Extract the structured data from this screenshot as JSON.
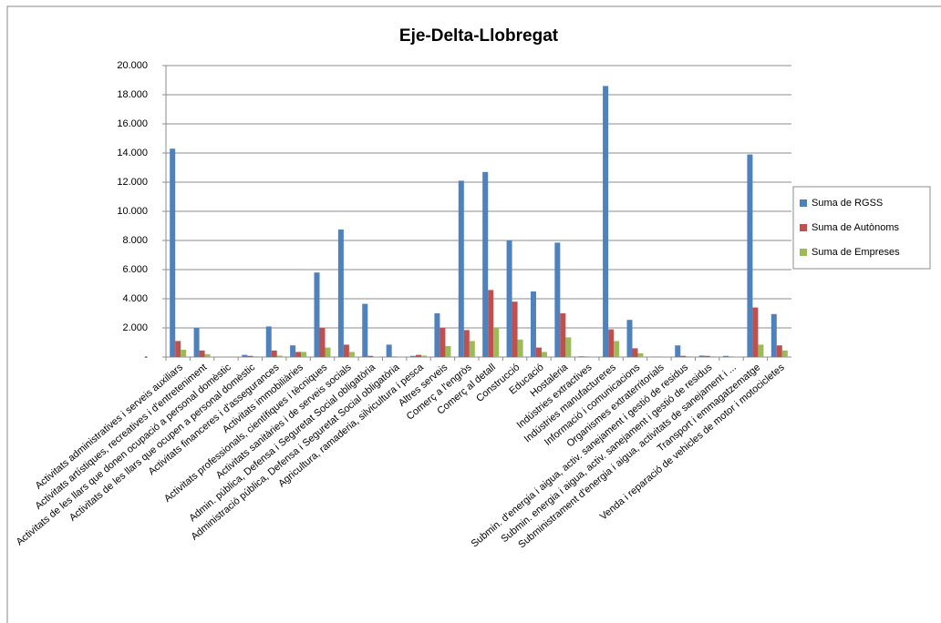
{
  "chart_data": {
    "type": "bar",
    "title": "Eje-Delta-Llobregat",
    "categories": [
      "Activitats administratives i serveis auxiliars",
      "Activitats artístiques, recreatives i d'entreteniment",
      "Activitats de les llars que donen ocupació a personal domèstic",
      "Activitats de les llars que ocupen a personal domèstic",
      "Activitats financeres i d'assegurances",
      "Activitats immobiliàries",
      "Activitats professionals, científiques i tècniques",
      "Activitats sanitàries i de serveis socials",
      "Admin. pública, Defensa i Seguretat Social obligatòria",
      "Administració pública, Defensa i Seguretat Social obligatòria",
      "Agricultura, ramaderia, silvicultura i pesca",
      "Altres serveis",
      "Comerç a l'engròs",
      "Comerç al detall",
      "Construcció",
      "Educació",
      "Hostaleria",
      "Indústries extractives",
      "Indústries manufactureres",
      "Informació i comunicacions",
      "Organismes extraterritorials",
      "Submin. d'energia i aigua, activ. sanejament i gestió de residus",
      "Submin. energia i aigua, activ. sanejament i gestió de residus",
      "Subministrament d'energia i aigua, activitats de sanejament i ...",
      "Transport i emmagatzematge",
      "Venda i reparació de vehicles de motor i motocicletes"
    ],
    "series": [
      {
        "name": "Suma de RGSS",
        "color": "#4f81bd",
        "values": [
          14300,
          2000,
          0,
          150,
          2100,
          800,
          5800,
          8750,
          3650,
          850,
          80,
          3000,
          12100,
          12700,
          8000,
          4500,
          7850,
          50,
          18600,
          2550,
          30,
          800,
          100,
          80,
          13900,
          2950
        ]
      },
      {
        "name": "Suma de Autònoms",
        "color": "#c0504d",
        "values": [
          1100,
          450,
          0,
          80,
          450,
          350,
          2000,
          850,
          80,
          30,
          150,
          2000,
          1850,
          4600,
          3800,
          650,
          3000,
          30,
          1900,
          600,
          20,
          80,
          80,
          30,
          3400,
          800
        ]
      },
      {
        "name": "Suma de Empreses",
        "color": "#9bbb59",
        "values": [
          500,
          200,
          0,
          50,
          100,
          350,
          650,
          350,
          30,
          20,
          100,
          750,
          1100,
          2000,
          1200,
          350,
          1350,
          20,
          1100,
          250,
          10,
          50,
          50,
          20,
          850,
          450
        ]
      }
    ],
    "ylim": [
      0,
      20000
    ],
    "yticks": [
      {
        "value": 0,
        "label": "-"
      },
      {
        "value": 2000,
        "label": "2.000"
      },
      {
        "value": 4000,
        "label": "4.000"
      },
      {
        "value": 6000,
        "label": "6.000"
      },
      {
        "value": 8000,
        "label": "8.000"
      },
      {
        "value": 10000,
        "label": "10.000"
      },
      {
        "value": 12000,
        "label": "12.000"
      },
      {
        "value": 14000,
        "label": "14.000"
      },
      {
        "value": 16000,
        "label": "16.000"
      },
      {
        "value": 18000,
        "label": "18.000"
      },
      {
        "value": 20000,
        "label": "20.000"
      }
    ],
    "grid": true,
    "legend": "right"
  }
}
